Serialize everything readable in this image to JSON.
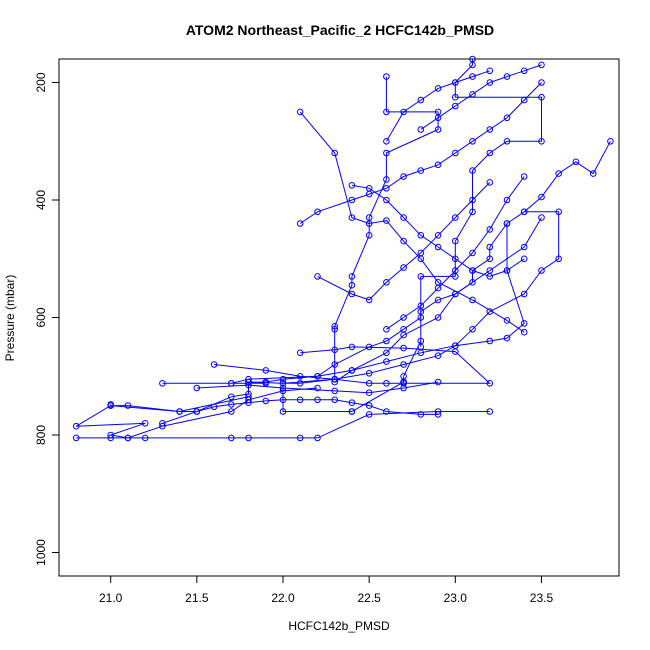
{
  "chart_data": {
    "type": "line",
    "title": "ATOM2 Northeast_Pacific_2 HCFC142b_PMSD",
    "xlabel": "HCFC142b_PMSD",
    "ylabel": "Pressure (mbar)",
    "xlim": [
      20.7,
      23.95
    ],
    "ylim": [
      1040,
      160
    ],
    "y_reversed": true,
    "xticks": [
      "21.0",
      "21.5",
      "22.0",
      "22.5",
      "23.0",
      "23.5"
    ],
    "yticks": [
      "200",
      "400",
      "600",
      "800",
      "1000"
    ],
    "grid": false,
    "color": "#0000ff",
    "marker": "open-circle",
    "series": [
      {
        "x": [
          22.6,
          22.6,
          22.9,
          22.9,
          22.6,
          22.6,
          22.5,
          22.5,
          22.4,
          22.4,
          22.3,
          22.3,
          22.3,
          22.0,
          22.0,
          22.4,
          22.4,
          22.7,
          22.7,
          22.7,
          22.8,
          22.8,
          22.8,
          23.0,
          23.0,
          23.1,
          23.1,
          23.2,
          23.3,
          23.5,
          23.5,
          23.0,
          23.0,
          23.1,
          23.1
        ],
        "y": [
          190,
          250,
          250,
          280,
          320,
          365,
          430,
          460,
          530,
          545,
          615,
          620,
          705,
          712,
          760,
          760,
          760,
          710,
          710,
          700,
          640,
          650,
          530,
          530,
          470,
          420,
          350,
          320,
          300,
          300,
          225,
          225,
          200,
          170,
          160
        ]
      },
      {
        "x": [
          23.9,
          23.8,
          23.7,
          23.6,
          23.5,
          23.4,
          23.3,
          23.2,
          23.2,
          23.1,
          23.1,
          23.0,
          22.9,
          22.8,
          22.8,
          22.7,
          22.6,
          22.5,
          22.3,
          22.2,
          22.0,
          21.9,
          21.8,
          21.8,
          21.7,
          21.5,
          21.4,
          21.0,
          21.0
        ],
        "y": [
          300,
          355,
          335,
          355,
          395,
          420,
          440,
          480,
          500,
          520,
          540,
          560,
          570,
          590,
          600,
          620,
          640,
          650,
          680,
          700,
          705,
          710,
          710,
          730,
          735,
          760,
          760,
          750,
          748
        ]
      },
      {
        "x": [
          21.8,
          21.4,
          21.1,
          21.0,
          20.8,
          21.2,
          21.0,
          21.1,
          21.3,
          21.7,
          21.8,
          22.0,
          22.2
        ],
        "y": [
          735,
          760,
          750,
          750,
          785,
          780,
          800,
          805,
          785,
          760,
          740,
          725,
          720
        ]
      },
      {
        "x": [
          20.8,
          21.0,
          21.1,
          21.2,
          21.7,
          21.8,
          22.1,
          22.2,
          22.5,
          22.9,
          23.2
        ],
        "y": [
          805,
          805,
          805,
          805,
          805,
          805,
          805,
          805,
          765,
          760,
          760
        ]
      },
      {
        "x": [
          22.9,
          22.8,
          22.6,
          22.5,
          22.4,
          22.3,
          22.2,
          22.1,
          22.0,
          21.9,
          21.8,
          21.7,
          21.6,
          21.5,
          21.3
        ],
        "y": [
          765,
          765,
          760,
          750,
          745,
          740,
          740,
          740,
          740,
          742,
          745,
          748,
          752,
          760,
          780
        ]
      },
      {
        "x": [
          21.7,
          21.9,
          21.8,
          22.0,
          22.1,
          22.3,
          22.5,
          22.6,
          22.7,
          23.2,
          23.0,
          22.7,
          22.4,
          22.3,
          22.1
        ],
        "y": [
          712,
          712,
          710,
          712,
          712,
          705,
          712,
          712,
          712,
          712,
          658,
          652,
          650,
          655,
          660
        ]
      },
      {
        "x": [
          21.3,
          21.7,
          21.8,
          22.2,
          22.4,
          22.6,
          22.8,
          23.0,
          23.1,
          23.2,
          23.4,
          23.5,
          23.6,
          23.6,
          23.4
        ],
        "y": [
          712,
          712,
          705,
          700,
          690,
          675,
          660,
          648,
          620,
          590,
          560,
          520,
          500,
          420,
          420
        ]
      },
      {
        "x": [
          21.6,
          21.9,
          22.1,
          22.3,
          22.5,
          22.7,
          22.9,
          23.0,
          23.2,
          23.3,
          23.4,
          23.3,
          23.3
        ],
        "y": [
          680,
          690,
          700,
          705,
          695,
          680,
          665,
          648,
          640,
          635,
          610,
          520,
          440
        ]
      },
      {
        "x": [
          22.1,
          22.2,
          22.4,
          22.5,
          22.6,
          22.7,
          22.8,
          22.9,
          23.0,
          23.1,
          23.2,
          23.3,
          23.4,
          23.5
        ],
        "y": [
          440,
          420,
          400,
          390,
          380,
          360,
          350,
          340,
          320,
          300,
          280,
          260,
          230,
          200
        ]
      },
      {
        "x": [
          22.1,
          22.3,
          22.4,
          22.5,
          22.6,
          22.7,
          22.8,
          22.9,
          23.1,
          23.3,
          23.4
        ],
        "y": [
          250,
          320,
          430,
          440,
          435,
          470,
          500,
          540,
          570,
          605,
          625
        ]
      },
      {
        "x": [
          22.2,
          22.4,
          22.5,
          22.6,
          22.7,
          22.8,
          22.9,
          23.0,
          23.1,
          23.2
        ],
        "y": [
          530,
          560,
          570,
          540,
          515,
          490,
          460,
          430,
          400,
          370
        ]
      },
      {
        "x": [
          22.4,
          22.5,
          22.6,
          22.7,
          22.8,
          22.9,
          23.0,
          23.1,
          23.2,
          23.3,
          23.4
        ],
        "y": [
          375,
          380,
          400,
          430,
          460,
          480,
          500,
          520,
          530,
          520,
          500
        ]
      },
      {
        "x": [
          22.6,
          22.7,
          22.8,
          22.9,
          23.0,
          23.1,
          23.2,
          23.3,
          23.4
        ],
        "y": [
          620,
          600,
          580,
          550,
          520,
          490,
          450,
          400,
          360
        ]
      },
      {
        "x": [
          22.3,
          22.4,
          22.6,
          22.7,
          22.9,
          23.0,
          23.2,
          23.4,
          23.5
        ],
        "y": [
          710,
          690,
          660,
          630,
          600,
          560,
          520,
          480,
          430
        ]
      },
      {
        "x": [
          21.5,
          21.8,
          22.0,
          22.3,
          22.5,
          22.7,
          22.9
        ],
        "y": [
          720,
          715,
          720,
          725,
          728,
          720,
          710
        ]
      },
      {
        "x": [
          22.6,
          22.7,
          22.8,
          22.9,
          23.0,
          23.1,
          23.2
        ],
        "y": [
          300,
          250,
          230,
          210,
          200,
          190,
          180
        ]
      },
      {
        "x": [
          22.8,
          22.9,
          23.0,
          23.1,
          23.2,
          23.3,
          23.4,
          23.5
        ],
        "y": [
          280,
          260,
          240,
          220,
          200,
          190,
          180,
          170
        ]
      }
    ]
  }
}
